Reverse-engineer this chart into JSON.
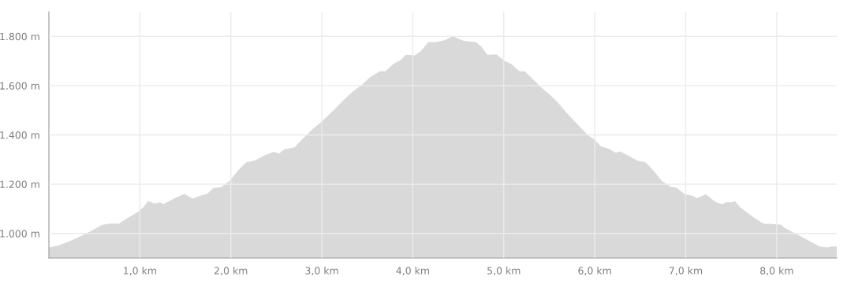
{
  "chart_data": {
    "type": "area",
    "x": [
      0,
      0.1,
      0.23,
      0.35,
      0.47,
      0.585,
      0.68,
      0.77,
      0.86,
      0.98,
      1.04,
      1.09,
      1.16,
      1.22,
      1.26,
      1.38,
      1.49,
      1.58,
      1.67,
      1.74,
      1.81,
      1.89,
      1.99,
      2.08,
      2.17,
      2.26,
      2.37,
      2.47,
      2.53,
      2.59,
      2.7,
      2.8,
      2.89,
      3.0,
      3.13,
      3.25,
      3.35,
      3.44,
      3.53,
      3.64,
      3.7,
      3.79,
      3.87,
      3.92,
      4.02,
      4.08,
      4.14,
      4.17,
      4.26,
      4.35,
      4.44,
      4.56,
      4.69,
      4.75,
      4.82,
      4.92,
      5.01,
      5.08,
      5.17,
      5.23,
      5.33,
      5.42,
      5.51,
      5.6,
      5.69,
      5.81,
      5.93,
      5.99,
      6.07,
      6.14,
      6.23,
      6.28,
      6.38,
      6.47,
      6.56,
      6.65,
      6.74,
      6.83,
      6.9,
      6.99,
      7.08,
      7.12,
      7.22,
      7.33,
      7.4,
      7.45,
      7.51,
      7.54,
      7.6,
      7.76,
      7.86,
      7.93,
      8.05,
      8.08,
      8.26,
      8.47,
      8.56,
      8.6,
      8.66
    ],
    "series": [
      {
        "color": "#d9d9d9",
        "values": [
          943,
          950,
          969,
          989,
          1011,
          1035,
          1040,
          1040,
          1061,
          1088,
          1107,
          1132,
          1121,
          1126,
          1119,
          1143,
          1160,
          1141,
          1154,
          1161,
          1185,
          1187,
          1215,
          1256,
          1289,
          1295,
          1317,
          1331,
          1325,
          1342,
          1350,
          1388,
          1421,
          1454,
          1501,
          1545,
          1579,
          1604,
          1634,
          1659,
          1659,
          1689,
          1705,
          1725,
          1723,
          1738,
          1763,
          1777,
          1777,
          1785,
          1801,
          1782,
          1777,
          1760,
          1725,
          1727,
          1700,
          1689,
          1659,
          1659,
          1623,
          1590,
          1562,
          1529,
          1490,
          1443,
          1397,
          1383,
          1353,
          1346,
          1328,
          1333,
          1314,
          1295,
          1289,
          1253,
          1212,
          1190,
          1185,
          1159,
          1152,
          1143,
          1159,
          1127,
          1119,
          1127,
          1126,
          1132,
          1105,
          1061,
          1039,
          1039,
          1035,
          1024,
          989,
          947,
          943,
          947,
          947
        ]
      }
    ],
    "xlim": [
      0,
      8.66
    ],
    "xticks": [
      {
        "value": 1,
        "label": "1,0 km"
      },
      {
        "value": 2,
        "label": "2,0 km"
      },
      {
        "value": 3,
        "label": "3,0 km"
      },
      {
        "value": 4,
        "label": "4,0 km"
      },
      {
        "value": 5,
        "label": "5,0 km"
      },
      {
        "value": 6,
        "label": "6,0 km"
      },
      {
        "value": 7,
        "label": "7,0 km"
      },
      {
        "value": 8,
        "label": "8,0 km"
      }
    ],
    "ylim": [
      900,
      1900
    ],
    "yticks": [
      {
        "value": 1000,
        "label": "1.000 m"
      },
      {
        "value": 1200,
        "label": "1.200 m"
      },
      {
        "value": 1400,
        "label": "1.400 m"
      },
      {
        "value": 1600,
        "label": "1.600 m"
      },
      {
        "value": 1800,
        "label": "1.800 m"
      }
    ],
    "grid": true,
    "legend": false
  }
}
